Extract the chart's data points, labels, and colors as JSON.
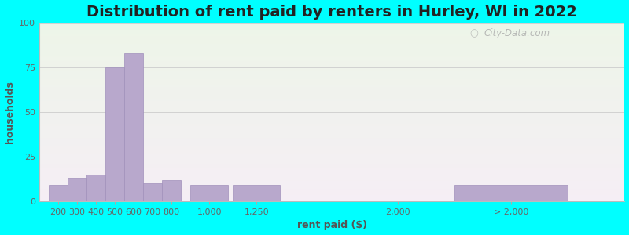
{
  "title": "Distribution of rent paid by renters in Hurley, WI in 2022",
  "xlabel": "rent paid ($)",
  "ylabel": "households",
  "bar_color": "#b8a8cc",
  "bar_edge_color": "#a090bb",
  "ylim": [
    0,
    100
  ],
  "yticks": [
    0,
    25,
    50,
    75,
    100
  ],
  "bg_color_top": "#edf5e8",
  "bg_color_bottom": "#f5eef5",
  "outer_bg": "#00ffff",
  "title_fontsize": 14,
  "axis_label_fontsize": 9,
  "tick_fontsize": 8,
  "watermark": "City-Data.com",
  "bar_centers": [
    200,
    300,
    400,
    500,
    600,
    700,
    800,
    1000,
    1250,
    2000,
    2600
  ],
  "bar_widths": [
    100,
    100,
    100,
    100,
    100,
    100,
    100,
    200,
    250,
    100,
    600
  ],
  "values": [
    9,
    13,
    15,
    75,
    83,
    10,
    12,
    9,
    9,
    0,
    9
  ],
  "xtick_positions": [
    200,
    300,
    400,
    500,
    600,
    700,
    800,
    1000,
    1250,
    2000,
    2600
  ],
  "xtick_labels": [
    "200",
    "300",
    "400",
    "500",
    "600",
    "700",
    "800",
    "1,000",
    "1,250",
    "2,000",
    "> 2,000"
  ],
  "xlim": [
    100,
    3200
  ]
}
